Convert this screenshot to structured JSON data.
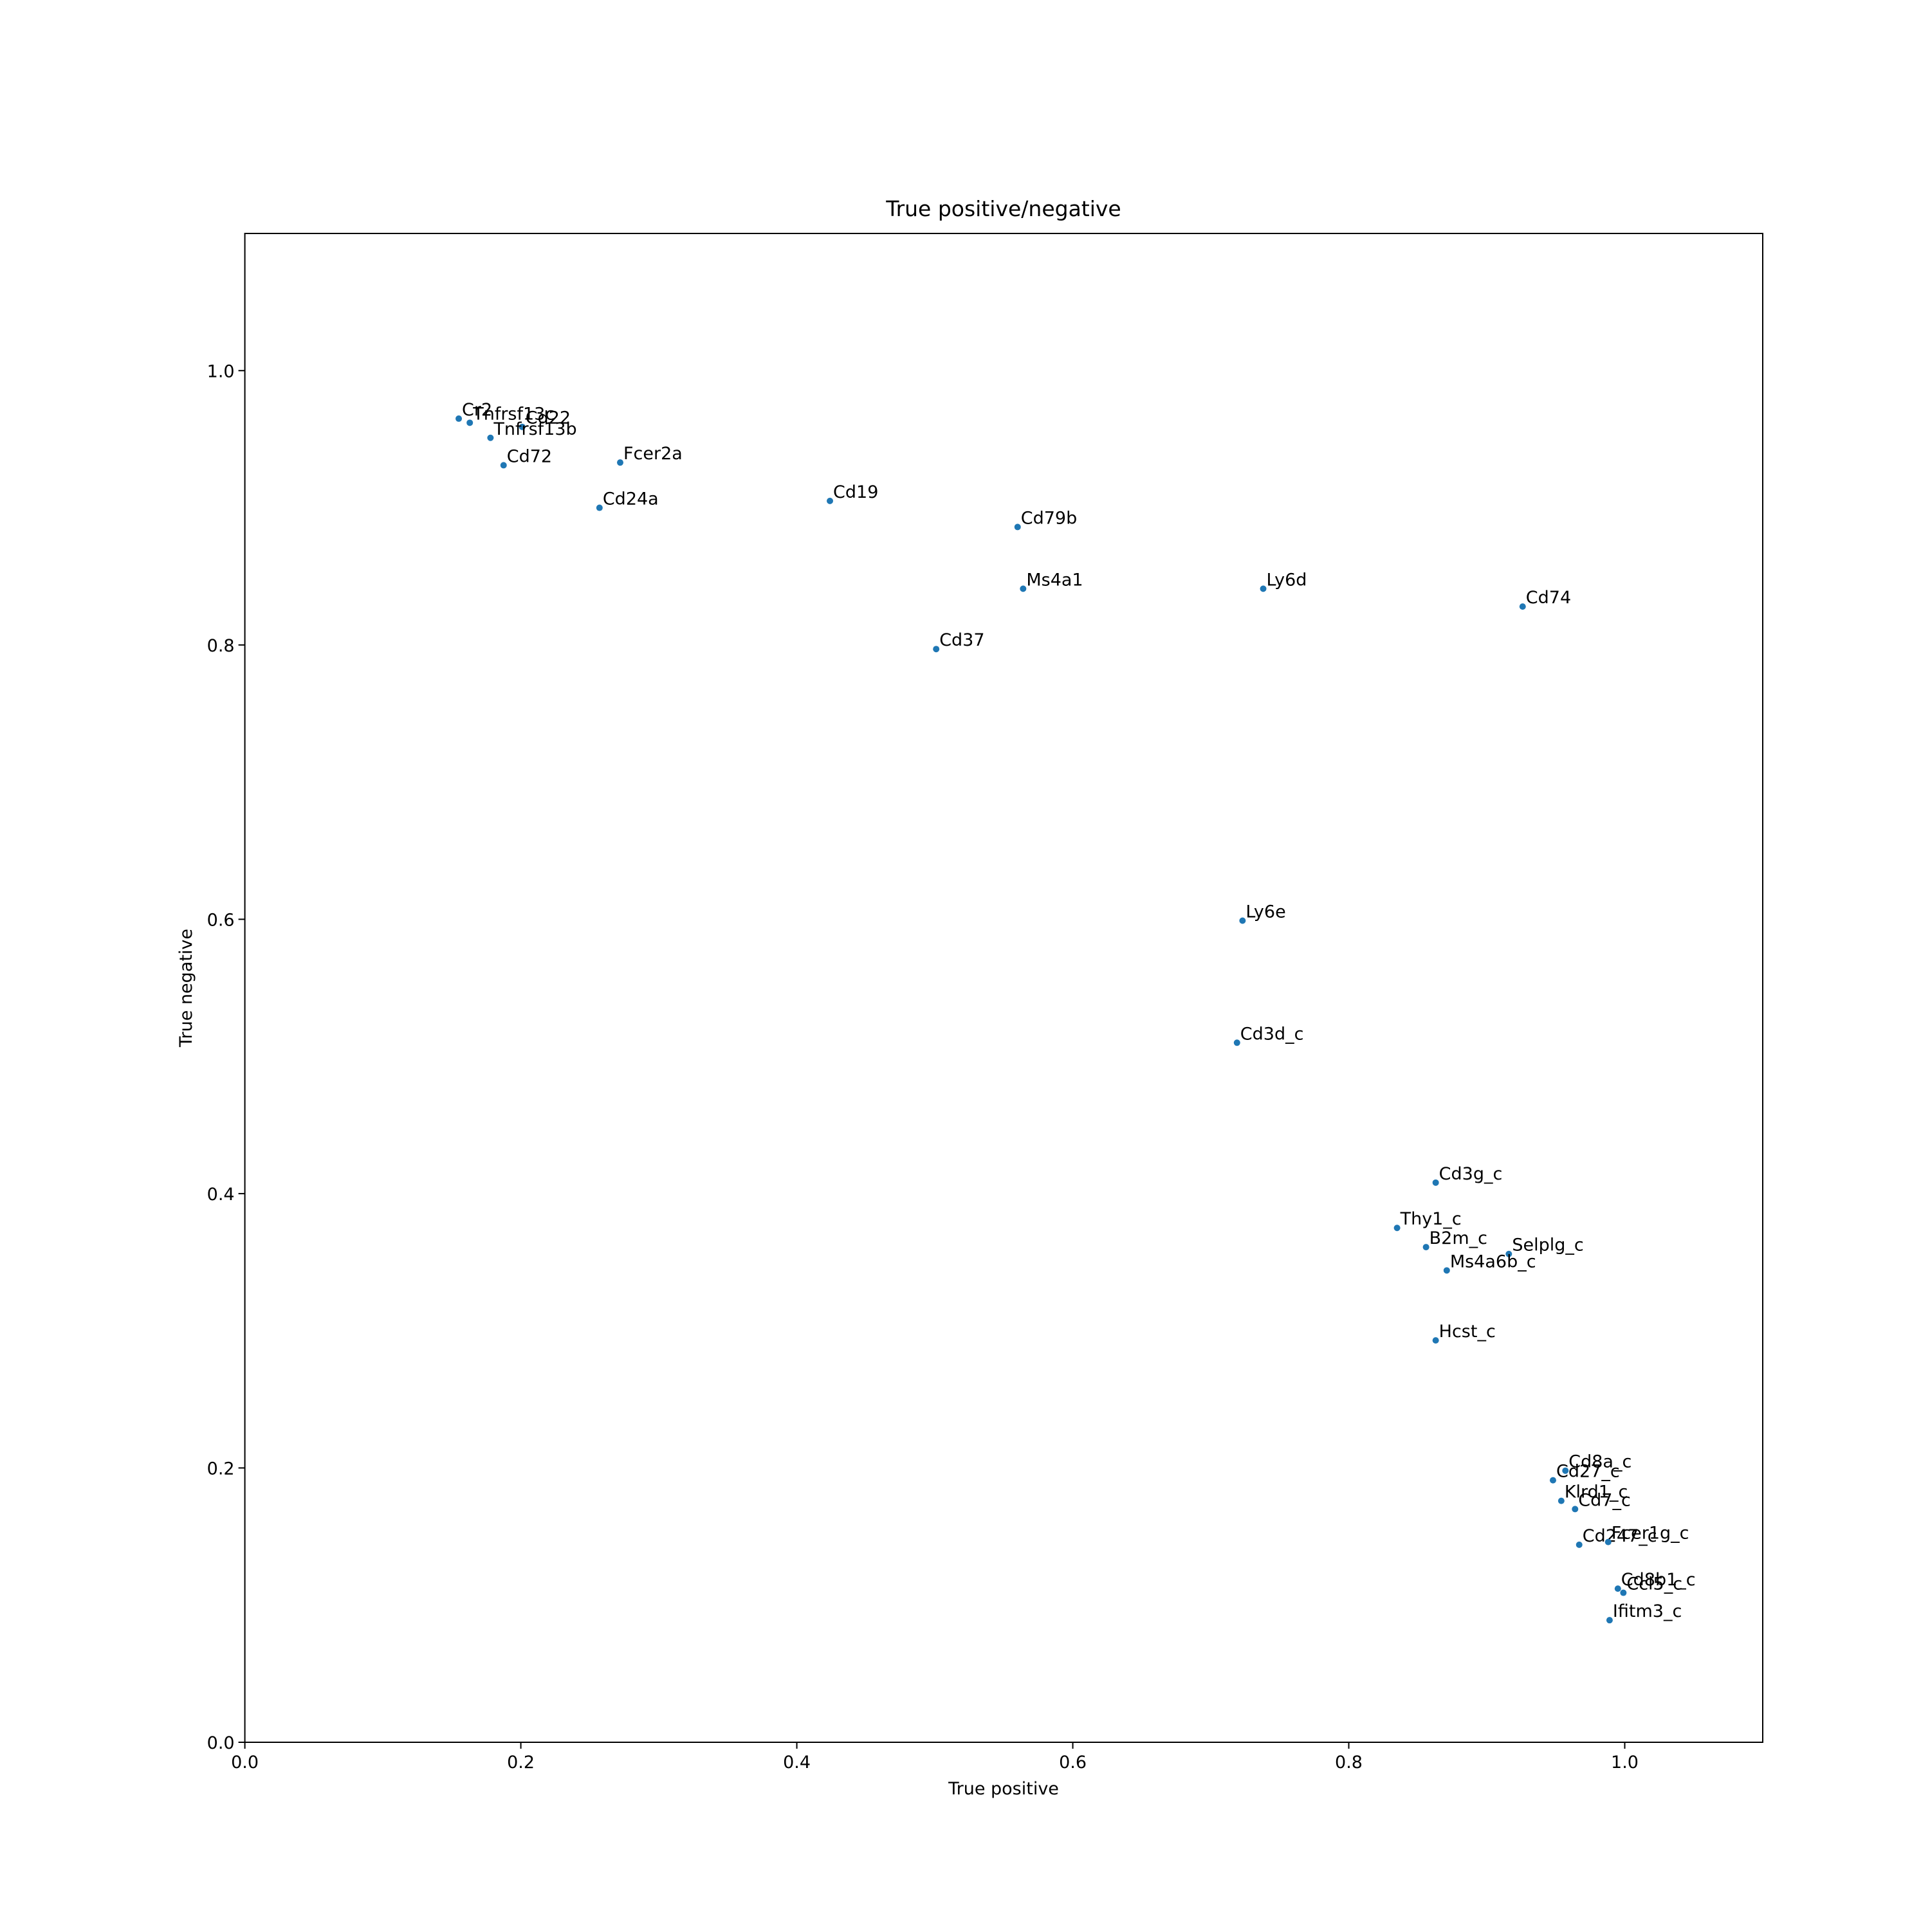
{
  "chart_data": {
    "type": "scatter",
    "title": "True positive/negative",
    "xlabel": "True positive",
    "ylabel": "True negative",
    "color": "#1f77b4",
    "grid": false,
    "xlim": [
      0,
      1.1
    ],
    "ylim": [
      0,
      1.1
    ],
    "xticks": [
      {
        "value": 0,
        "label": "0.0"
      },
      0.2,
      0.4,
      0.6,
      0.8,
      {
        "value": 1,
        "label": "1.0"
      }
    ],
    "yticks": [
      {
        "value": 0,
        "label": "0.0"
      },
      0.2,
      0.4,
      0.6,
      0.8,
      {
        "value": 1,
        "label": "1.0"
      }
    ],
    "labels": [
      "Cr2",
      "Tnfrsf13c",
      "Cd22",
      "Tnfrsf13b",
      "Cd72",
      "Fcer2a",
      "Cd24a",
      "Cd19",
      "Cd79b",
      "Ms4a1",
      "Cd37",
      "Ly6d",
      "Cd74",
      "Ly6e",
      "Cd3d_c",
      "Cd3g_c",
      "Thy1_c",
      "B2m_c",
      "Selplg_c",
      "Ms4a6b_c",
      "Hcst_c",
      "Cd8a_c",
      "Cd27_c",
      "Klrd1_c",
      "Cd7_c",
      "Cd247_c",
      "Fcer1g_c",
      "Cd8b1_c",
      "Ccl5_c",
      "Ifitm3_c"
    ],
    "x": [
      0.155,
      0.163,
      0.201,
      0.178,
      0.1875,
      0.272,
      0.257,
      0.424,
      0.56,
      0.564,
      0.501,
      0.738,
      0.926,
      0.723,
      0.719,
      0.863,
      0.835,
      0.856,
      0.916,
      0.871,
      0.863,
      0.957,
      0.948,
      0.954,
      0.964,
      0.967,
      0.988,
      0.995,
      0.999,
      0.989
    ],
    "values": [
      0.965,
      0.962,
      0.959,
      0.951,
      0.931,
      0.933,
      0.9,
      0.905,
      0.886,
      0.841,
      0.797,
      0.841,
      0.828,
      0.599,
      0.51,
      0.408,
      0.375,
      0.361,
      0.356,
      0.344,
      0.293,
      0.198,
      0.191,
      0.176,
      0.17,
      0.144,
      0.146,
      0.112,
      0.109,
      0.089
    ]
  }
}
